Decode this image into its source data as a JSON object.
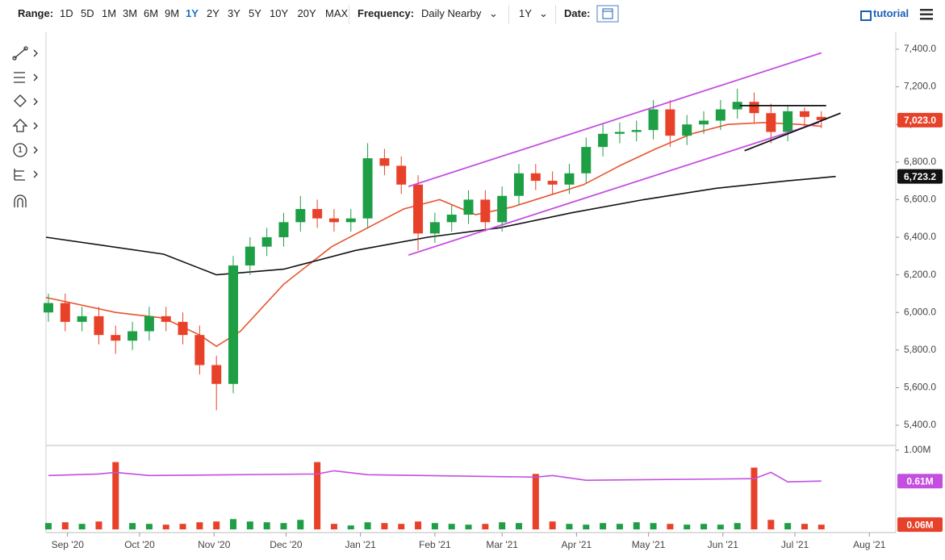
{
  "toolbar": {
    "range_label": "Range:",
    "ranges": [
      "1D",
      "5D",
      "1M",
      "3M",
      "6M",
      "9M",
      "1Y",
      "2Y",
      "3Y",
      "5Y",
      "10Y",
      "20Y",
      "MAX"
    ],
    "active_range": 6,
    "frequency_label": "Frequency:",
    "frequency": "Daily Nearby",
    "period": "1Y",
    "date_label": "Date:",
    "tutorial": "tutorial"
  },
  "chart_data": [
    {
      "type": "candlestick",
      "xlim": [
        -9,
        345
      ],
      "ylim": [
        5310,
        7490
      ],
      "yticks": [
        {
          "value": 5400,
          "label": "5,400.0"
        },
        {
          "value": 5600,
          "label": "5,600.0"
        },
        {
          "value": 5800,
          "label": "5,800.0"
        },
        {
          "value": 6000,
          "label": "6,000.0"
        },
        {
          "value": 6200,
          "label": "6,200.0"
        },
        {
          "value": 6400,
          "label": "6,400.0"
        },
        {
          "value": 6600,
          "label": "6,600.0"
        },
        {
          "value": 6800,
          "label": "6,800.0"
        },
        {
          "value": 7000,
          "label": "7,000.0"
        },
        {
          "value": 7200,
          "label": "7,200.0"
        },
        {
          "value": 7400,
          "label": "7,400.0"
        }
      ],
      "xticks": [
        {
          "value": 0,
          "label": "Sep '20"
        },
        {
          "value": 30,
          "label": "Oct '20"
        },
        {
          "value": 61,
          "label": "Nov '20"
        },
        {
          "value": 91,
          "label": "Dec '20"
        },
        {
          "value": 122,
          "label": "Jan '21"
        },
        {
          "value": 153,
          "label": "Feb '21"
        },
        {
          "value": 181,
          "label": "Mar '21"
        },
        {
          "value": 212,
          "label": "Apr '21"
        },
        {
          "value": 242,
          "label": "May '21"
        },
        {
          "value": 273,
          "label": "Jun '21"
        },
        {
          "value": 303,
          "label": "Jul '21"
        },
        {
          "value": 334,
          "label": "Aug '21"
        }
      ],
      "up_color": "#1e9e45",
      "down_color": "#e8412a",
      "x": [
        -8,
        -1,
        6,
        13,
        20,
        27,
        34,
        41,
        48,
        55,
        62,
        69,
        76,
        83,
        90,
        97,
        104,
        111,
        118,
        125,
        132,
        139,
        146,
        153,
        160,
        167,
        174,
        181,
        188,
        195,
        202,
        209,
        216,
        223,
        230,
        237,
        244,
        251,
        258,
        265,
        272,
        279,
        286,
        293,
        300,
        307,
        314
      ],
      "open": [
        6000,
        6050,
        5950,
        5980,
        5880,
        5850,
        5900,
        5980,
        5950,
        5880,
        5720,
        5620,
        6250,
        6350,
        6400,
        6480,
        6550,
        6500,
        6480,
        6500,
        6820,
        6780,
        6680,
        6420,
        6480,
        6520,
        6600,
        6480,
        6620,
        6740,
        6700,
        6680,
        6740,
        6880,
        6950,
        6960,
        6970,
        7080,
        6940,
        7000,
        7020,
        7080,
        7120,
        7060,
        6960,
        7070,
        7040
      ],
      "high": [
        6100,
        6100,
        6030,
        6030,
        5930,
        5950,
        6030,
        6030,
        6000,
        5930,
        5770,
        6300,
        6400,
        6450,
        6530,
        6620,
        6600,
        6550,
        6550,
        6900,
        6870,
        6830,
        6730,
        6530,
        6570,
        6650,
        6650,
        6670,
        6790,
        6790,
        6750,
        6790,
        6930,
        7000,
        7010,
        7020,
        7130,
        7130,
        7050,
        7070,
        7130,
        7190,
        7170,
        7110,
        7100,
        7090,
        7070
      ],
      "low": [
        5950,
        5900,
        5900,
        5830,
        5780,
        5800,
        5850,
        5900,
        5830,
        5670,
        5480,
        5570,
        6200,
        6300,
        6350,
        6430,
        6450,
        6430,
        6430,
        6450,
        6730,
        6630,
        6330,
        6370,
        6430,
        6470,
        6430,
        6430,
        6570,
        6650,
        6630,
        6630,
        6690,
        6830,
        6900,
        6910,
        6920,
        6880,
        6890,
        6950,
        6970,
        7030,
        7010,
        6900,
        6910,
        6990,
        6980
      ],
      "close": [
        6050,
        5950,
        5980,
        5880,
        5850,
        5900,
        5980,
        5950,
        5880,
        5720,
        5620,
        6250,
        6350,
        6400,
        6480,
        6550,
        6500,
        6480,
        6500,
        6820,
        6780,
        6680,
        6420,
        6480,
        6520,
        6600,
        6480,
        6620,
        6740,
        6700,
        6680,
        6740,
        6880,
        6950,
        6960,
        6970,
        7080,
        6940,
        7000,
        7020,
        7080,
        7120,
        7060,
        6960,
        7070,
        7040,
        7023
      ],
      "moving_averages": [
        {
          "color": "#e8542e",
          "x": [
            -9,
            20,
            40,
            55,
            62,
            72,
            90,
            110,
            125,
            140,
            155,
            170,
            185,
            200,
            215,
            230,
            245,
            260,
            275,
            290,
            305,
            314
          ],
          "values": [
            6080,
            6000,
            5970,
            5880,
            5820,
            5900,
            6150,
            6350,
            6450,
            6550,
            6600,
            6520,
            6560,
            6620,
            6680,
            6780,
            6870,
            6950,
            7000,
            7010,
            7000,
            6990
          ]
        },
        {
          "color": "#111111",
          "x": [
            -9,
            40,
            62,
            90,
            120,
            150,
            180,
            210,
            240,
            270,
            300,
            320
          ],
          "values": [
            6400,
            6310,
            6200,
            6230,
            6330,
            6400,
            6450,
            6530,
            6600,
            6660,
            6700,
            6723
          ]
        }
      ],
      "trendlines": [
        {
          "color": "#c44ee0",
          "x": [
            142,
            314
          ],
          "values": [
            6670,
            7380
          ]
        },
        {
          "color": "#c44ee0",
          "x": [
            142,
            313
          ],
          "values": [
            6305,
            7010
          ]
        },
        {
          "color": "#111111",
          "x": [
            280,
            316
          ],
          "values": [
            7100,
            7100
          ]
        },
        {
          "color": "#111111",
          "x": [
            282,
            322
          ],
          "values": [
            6860,
            7060
          ]
        }
      ],
      "price_badges": [
        {
          "value": 7023.0,
          "label": "7,023.0",
          "color": "#e8412a"
        },
        {
          "value": 6723.2,
          "label": "6,723.2",
          "color": "#111111"
        }
      ]
    },
    {
      "type": "bar",
      "xlim": [
        -9,
        345
      ],
      "ylim": [
        -0.04,
        1.05
      ],
      "yticks": [
        {
          "value": 1,
          "label": "1.00M"
        }
      ],
      "x": [
        -8,
        -1,
        6,
        13,
        20,
        27,
        34,
        41,
        48,
        55,
        62,
        69,
        76,
        83,
        90,
        97,
        104,
        111,
        118,
        125,
        132,
        139,
        146,
        153,
        160,
        167,
        174,
        181,
        188,
        195,
        202,
        209,
        216,
        223,
        230,
        237,
        244,
        251,
        258,
        265,
        272,
        279,
        286,
        293,
        300,
        307,
        314
      ],
      "values": [
        0.08,
        0.09,
        0.07,
        0.1,
        0.85,
        0.08,
        0.07,
        0.06,
        0.07,
        0.09,
        0.1,
        0.13,
        0.1,
        0.09,
        0.08,
        0.12,
        0.85,
        0.07,
        0.05,
        0.09,
        0.08,
        0.07,
        0.1,
        0.08,
        0.07,
        0.06,
        0.07,
        0.09,
        0.08,
        0.7,
        0.1,
        0.07,
        0.06,
        0.08,
        0.07,
        0.09,
        0.08,
        0.07,
        0.06,
        0.07,
        0.06,
        0.08,
        0.78,
        0.12,
        0.08,
        0.07,
        0.06
      ],
      "average": {
        "color": "#c44ee0",
        "x": [
          -8,
          13,
          20,
          34,
          104,
          111,
          125,
          195,
          202,
          216,
          286,
          293,
          300,
          314
        ],
        "values": [
          0.68,
          0.7,
          0.72,
          0.68,
          0.7,
          0.74,
          0.69,
          0.66,
          0.68,
          0.62,
          0.64,
          0.72,
          0.6,
          0.61
        ]
      },
      "badges": [
        {
          "value": 0.61,
          "label": "0.61M",
          "color": "#c44ee0"
        },
        {
          "value": 0.06,
          "label": "0.06M",
          "color": "#e8412a"
        }
      ]
    }
  ]
}
